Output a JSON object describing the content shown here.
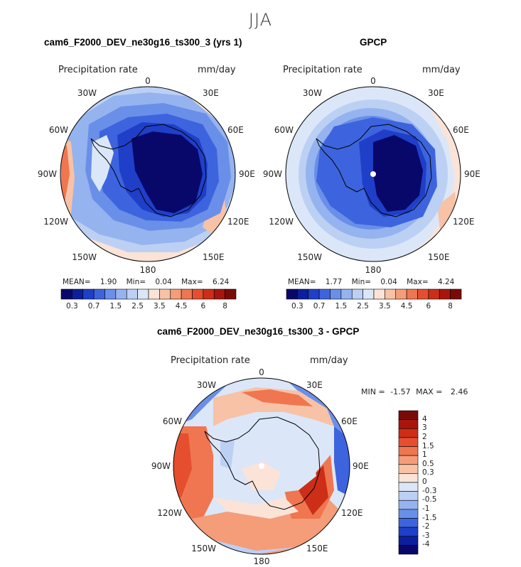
{
  "season": "JJA",
  "panels": [
    {
      "title": "cam6_F2000_DEV_ne30g16_ts300_3 (yrs 1)",
      "var_label": "Precipitation rate",
      "units": "mm/day",
      "lon_labels": [
        "0",
        "30E",
        "60E",
        "90E",
        "120E",
        "150E",
        "180",
        "150W",
        "120W",
        "90W",
        "60W",
        "30W"
      ],
      "stats": {
        "mean_label": "MEAN=",
        "mean": "1.90",
        "min_label": "Min=",
        "min": "0.04",
        "max_label": "Max=",
        "max": "6.24"
      }
    },
    {
      "title": "GPCP",
      "var_label": "Precipitation rate",
      "units": "mm/day",
      "lon_labels": [
        "0",
        "30E",
        "60E",
        "90E",
        "120E",
        "150E",
        "180",
        "150W",
        "120W",
        "90W",
        "60W",
        "30W"
      ],
      "stats": {
        "mean_label": "MEAN=",
        "mean": "1.77",
        "min_label": "Min=",
        "min": "0.04",
        "max_label": "Max=",
        "max": "4.24"
      }
    },
    {
      "title": "cam6_F2000_DEV_ne30g16_ts300_3 - GPCP",
      "var_label": "Precipitation rate",
      "units": "mm/day",
      "lon_labels": [
        "0",
        "30E",
        "60E",
        "90E",
        "120E",
        "150E",
        "180",
        "150W",
        "120W",
        "90W",
        "60W",
        "30W"
      ],
      "stats": {
        "min_label": "MIN =",
        "min": "-1.57",
        "max_label": "MAX =",
        "max": "2.46"
      }
    }
  ],
  "colorbar_abs": {
    "labels": [
      "0.3",
      "0.7",
      "1.5",
      "2.5",
      "3.5",
      "4.5",
      "6",
      "8"
    ],
    "colors": [
      "#08086b",
      "#0c1f9c",
      "#1f3fc8",
      "#3d64de",
      "#6a8fe8",
      "#95b3ef",
      "#bcd0f4",
      "#dbe7f8",
      "#fbe3d7",
      "#f8c2a6",
      "#f49d78",
      "#ef7650",
      "#e54f2f",
      "#cc2e17",
      "#a8150d",
      "#7a0a08"
    ]
  },
  "colorbar_diff": {
    "labels": [
      "4",
      "3",
      "2",
      "1.5",
      "1",
      "0.5",
      "0.3",
      "0",
      "-0.3",
      "-0.5",
      "-1",
      "-1.5",
      "-2",
      "-3",
      "-4"
    ],
    "colors": [
      "#7a0a08",
      "#a8150d",
      "#cc2e17",
      "#e54f2f",
      "#ef7650",
      "#f49d78",
      "#f8c2a6",
      "#fbe3d7",
      "#dbe7f8",
      "#bcd0f4",
      "#95b3ef",
      "#6a8fe8",
      "#3d64de",
      "#1f3fc8",
      "#0c1f9c",
      "#08086b"
    ]
  },
  "colors": {
    "deep_blue": "#08086b",
    "mid_blue": "#3d64de",
    "light_blue": "#bcd0f4",
    "pale_blue": "#dbe7f8",
    "pale_red": "#fbe3d7",
    "mid_red": "#ef7650",
    "deep_red": "#cc2e17"
  }
}
